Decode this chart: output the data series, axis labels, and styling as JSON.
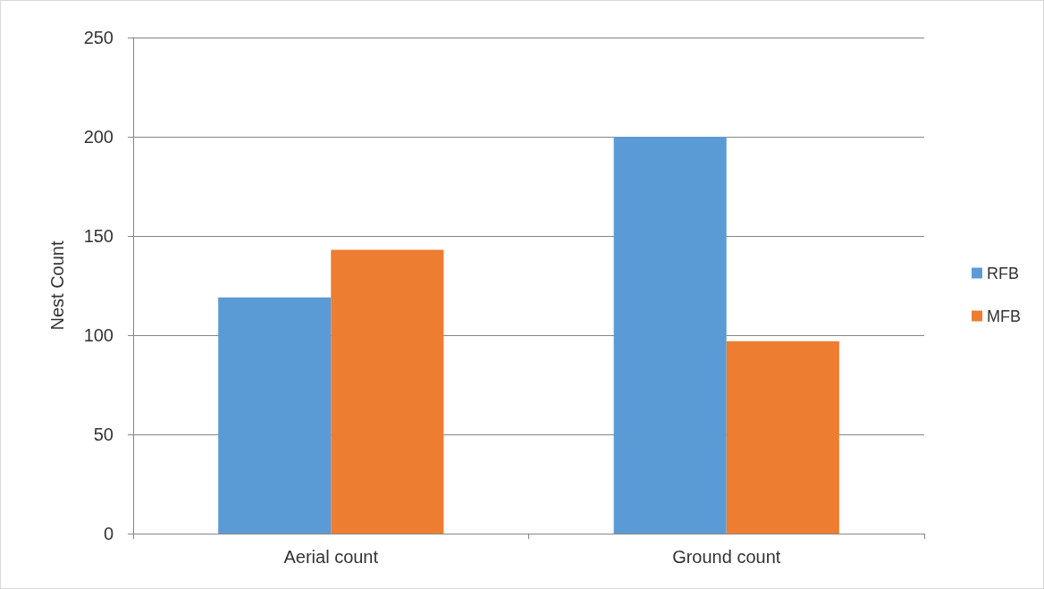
{
  "chart_data": {
    "type": "bar",
    "ylabel": "Nest Count",
    "categories": [
      "Aerial count",
      "Ground count"
    ],
    "series": [
      {
        "name": "RFB",
        "color": "#5b9bd5",
        "values": [
          119,
          200
        ]
      },
      {
        "name": "MFB",
        "color": "#ed7d31",
        "values": [
          143,
          97
        ]
      }
    ],
    "ylim": [
      0,
      250
    ],
    "yticks": [
      0,
      50,
      100,
      150,
      200,
      250
    ],
    "grid": "y",
    "legend": "right"
  }
}
